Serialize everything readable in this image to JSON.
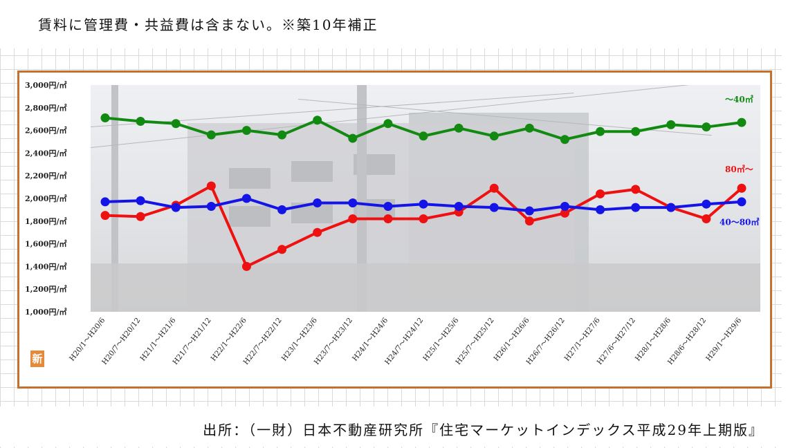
{
  "note_text": "賃料に管理費・共益費は含まない。※築10年補正",
  "source_text": "出所：（一財）日本不動産研究所『住宅マーケットインデックス平成29年上期版』",
  "badge_text": "新",
  "chart_data": {
    "type": "line",
    "title": "",
    "xlabel": "",
    "ylabel": "",
    "ylim": [
      1000,
      3000
    ],
    "yticks": [
      "3,000円/㎡",
      "2,800円/㎡",
      "2,600円/㎡",
      "2,400円/㎡",
      "2,200円/㎡",
      "2,000円/㎡",
      "1,800円/㎡",
      "1,600円/㎡",
      "1,400円/㎡",
      "1,200円/㎡",
      "1,000円/㎡"
    ],
    "categories": [
      "H20/1～H20/6",
      "H20/7～H20/12",
      "H21/1～H21/6",
      "H21/7～H21/12",
      "H22/1～H22/6",
      "H22/7～H22/12",
      "H23/1～H23/6",
      "H23/7～H23/12",
      "H24/1～H24/6",
      "H24/7～H24/12",
      "H25/1～H25/6",
      "H25/7～H25/12",
      "H26/1～H26/6",
      "H26/7～H26/12",
      "H27/1～H27/6",
      "H27/6～H27/12",
      "H28/1～H28/6",
      "H28/6～H28/12",
      "H29/1～H29/6"
    ],
    "series": [
      {
        "name": "～40㎡",
        "color": "#128a12",
        "values": [
          2710,
          2680,
          2660,
          2560,
          2600,
          2560,
          2690,
          2530,
          2660,
          2550,
          2620,
          2550,
          2620,
          2520,
          2590,
          2590,
          2650,
          2630,
          2670
        ]
      },
      {
        "name": "80㎡～",
        "color": "#ee1111",
        "values": [
          1850,
          1840,
          1940,
          2110,
          1400,
          1550,
          1700,
          1820,
          1820,
          1820,
          1880,
          2090,
          1800,
          1870,
          2040,
          2080,
          1920,
          1820,
          2090
        ]
      },
      {
        "name": "40～80㎡",
        "color": "#1414e6",
        "values": [
          1970,
          1980,
          1920,
          1930,
          2000,
          1900,
          1960,
          1960,
          1930,
          1950,
          1930,
          1920,
          1890,
          1930,
          1900,
          1920,
          1920,
          1950,
          1970
        ]
      }
    ],
    "grid": false,
    "legend": "inline-right"
  }
}
